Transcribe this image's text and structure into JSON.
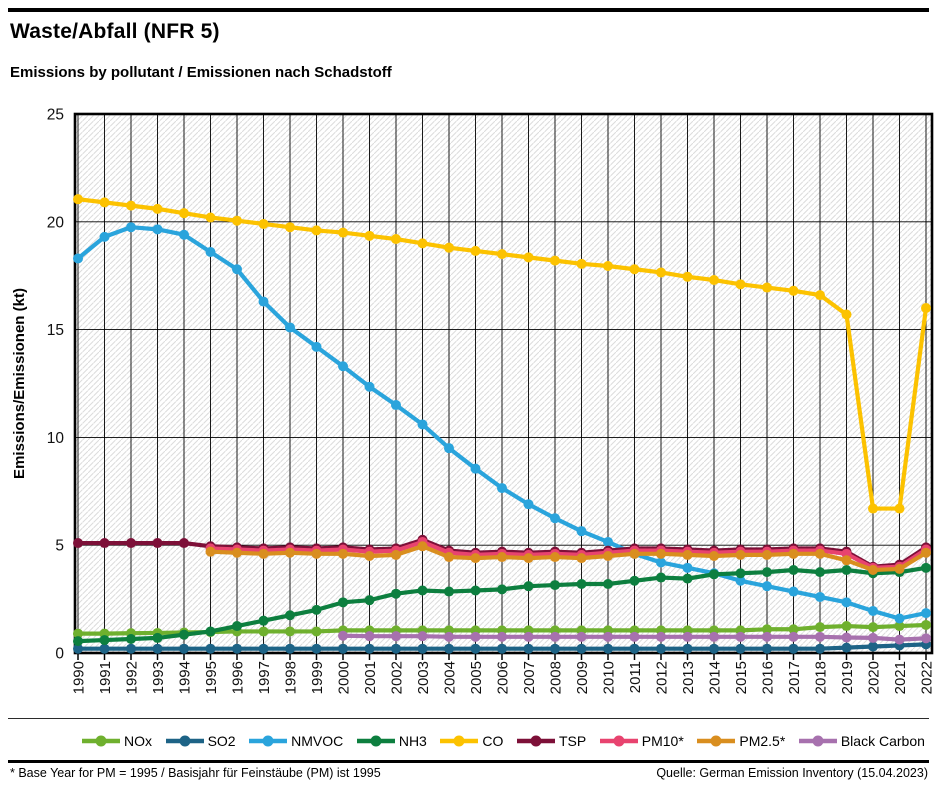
{
  "header": {
    "title": "Waste/Abfall (NFR 5)",
    "subtitle": "Emissions by pollutant / Emissionen nach Schadstoff"
  },
  "footer": {
    "footnote": "* Base Year for PM = 1995 / Basisjahr für Feinstäube (PM) ist 1995",
    "source": "Quelle: German Emission Inventory (15.04.2023)"
  },
  "chart_data": {
    "type": "line",
    "title": "Waste/Abfall (NFR 5)",
    "subtitle": "Emissions by pollutant / Emissionen nach Schadstoff",
    "xlabel": "",
    "ylabel": "Emissions/Emissionen (kt)",
    "ylim": [
      0,
      25
    ],
    "yticks": [
      0,
      5,
      10,
      15,
      20,
      25
    ],
    "grid": true,
    "hatch_background": true,
    "legend_position": "bottom",
    "x": [
      1990,
      1991,
      1992,
      1993,
      1994,
      1995,
      1996,
      1997,
      1998,
      1999,
      2000,
      2001,
      2002,
      2003,
      2004,
      2005,
      2006,
      2007,
      2008,
      2009,
      2010,
      2011,
      2012,
      2013,
      2014,
      2015,
      2016,
      2017,
      2018,
      2019,
      2020,
      2021,
      2022
    ],
    "series": [
      {
        "name": "NOx",
        "color": "#6fb02e",
        "values": [
          0.9,
          0.9,
          0.92,
          0.93,
          0.95,
          0.97,
          1.0,
          1.0,
          1.0,
          1.0,
          1.05,
          1.05,
          1.05,
          1.05,
          1.05,
          1.05,
          1.05,
          1.05,
          1.05,
          1.05,
          1.05,
          1.05,
          1.05,
          1.05,
          1.05,
          1.05,
          1.1,
          1.1,
          1.2,
          1.25,
          1.2,
          1.25,
          1.3
        ]
      },
      {
        "name": "SO2",
        "color": "#1d6386",
        "values": [
          0.2,
          0.2,
          0.2,
          0.2,
          0.2,
          0.2,
          0.2,
          0.2,
          0.2,
          0.2,
          0.2,
          0.2,
          0.2,
          0.2,
          0.2,
          0.2,
          0.2,
          0.2,
          0.2,
          0.2,
          0.2,
          0.2,
          0.2,
          0.2,
          0.2,
          0.2,
          0.2,
          0.2,
          0.2,
          0.25,
          0.3,
          0.35,
          0.4
        ]
      },
      {
        "name": "NMVOC",
        "color": "#2aa4dc",
        "values": [
          18.3,
          19.3,
          19.75,
          19.65,
          19.4,
          18.6,
          17.8,
          16.3,
          15.1,
          14.2,
          13.3,
          12.35,
          11.5,
          10.6,
          9.5,
          8.55,
          7.65,
          6.9,
          6.25,
          5.65,
          5.15,
          4.6,
          4.2,
          3.95,
          3.7,
          3.35,
          3.1,
          2.85,
          2.6,
          2.35,
          1.95,
          1.6,
          1.85
        ]
      },
      {
        "name": "NH3",
        "color": "#0d7f3f",
        "values": [
          0.55,
          0.6,
          0.65,
          0.7,
          0.85,
          1.0,
          1.25,
          1.5,
          1.75,
          2.0,
          2.35,
          2.45,
          2.75,
          2.9,
          2.85,
          2.9,
          2.95,
          3.1,
          3.15,
          3.2,
          3.2,
          3.35,
          3.5,
          3.45,
          3.65,
          3.7,
          3.75,
          3.85,
          3.75,
          3.85,
          3.7,
          3.75,
          3.95
        ]
      },
      {
        "name": "CO",
        "color": "#fcc200",
        "values": [
          21.05,
          20.9,
          20.75,
          20.6,
          20.4,
          20.2,
          20.05,
          19.9,
          19.75,
          19.6,
          19.5,
          19.35,
          19.2,
          19.0,
          18.8,
          18.65,
          18.5,
          18.35,
          18.2,
          18.05,
          17.95,
          17.8,
          17.65,
          17.45,
          17.3,
          17.1,
          16.95,
          16.8,
          16.6,
          15.7,
          6.7,
          6.7,
          16.0
        ]
      },
      {
        "name": "TSP",
        "color": "#7d1038",
        "values": [
          5.1,
          5.1,
          5.1,
          5.1,
          5.1,
          4.95,
          4.9,
          4.85,
          4.9,
          4.85,
          4.9,
          4.8,
          4.85,
          5.25,
          4.75,
          4.65,
          4.7,
          4.65,
          4.7,
          4.65,
          4.75,
          4.85,
          4.85,
          4.8,
          4.75,
          4.8,
          4.8,
          4.85,
          4.85,
          4.7,
          4.0,
          4.1,
          4.9
        ]
      },
      {
        "name": "PM10*",
        "color": "#e8436f",
        "values": [
          null,
          null,
          null,
          null,
          null,
          4.85,
          4.8,
          4.75,
          4.8,
          4.75,
          4.8,
          4.7,
          4.75,
          5.15,
          4.65,
          4.55,
          4.6,
          4.55,
          4.6,
          4.55,
          4.65,
          4.75,
          4.75,
          4.7,
          4.65,
          4.7,
          4.7,
          4.75,
          4.75,
          4.6,
          3.95,
          4.0,
          4.8
        ]
      },
      {
        "name": "PM2.5*",
        "color": "#d98e1f",
        "values": [
          null,
          null,
          null,
          null,
          null,
          4.7,
          4.65,
          4.6,
          4.65,
          4.6,
          4.6,
          4.5,
          4.55,
          4.95,
          4.45,
          4.4,
          4.45,
          4.4,
          4.45,
          4.4,
          4.5,
          4.6,
          4.6,
          4.55,
          4.5,
          4.55,
          4.55,
          4.6,
          4.6,
          4.3,
          3.85,
          3.9,
          4.65
        ]
      },
      {
        "name": "Black Carbon",
        "color": "#a771ae",
        "values": [
          null,
          null,
          null,
          null,
          null,
          null,
          null,
          null,
          null,
          null,
          0.8,
          0.78,
          0.78,
          0.78,
          0.75,
          0.75,
          0.75,
          0.75,
          0.75,
          0.75,
          0.75,
          0.75,
          0.75,
          0.75,
          0.75,
          0.75,
          0.75,
          0.75,
          0.75,
          0.72,
          0.7,
          0.62,
          0.68
        ]
      }
    ]
  }
}
